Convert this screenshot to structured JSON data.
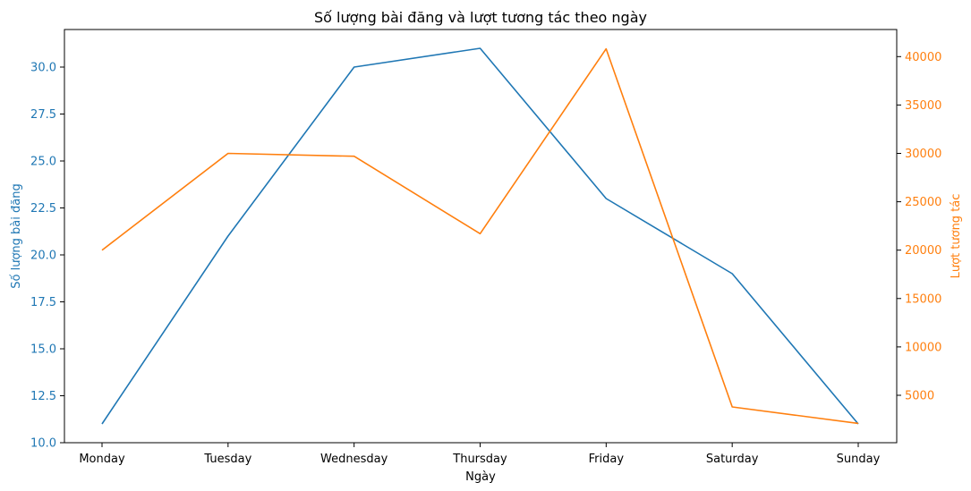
{
  "chart_data": {
    "type": "line",
    "title": "Số lượng bài đăng và lượt tương tác theo ngày",
    "xlabel": "Ngày",
    "categories": [
      "Monday",
      "Tuesday",
      "Wednesday",
      "Thursday",
      "Friday",
      "Saturday",
      "Sunday"
    ],
    "series": [
      {
        "axis": "left",
        "color": "#1f77b4",
        "values": [
          11,
          21,
          30,
          31,
          23,
          19,
          11
        ]
      },
      {
        "axis": "right",
        "color": "#ff7f0e",
        "values": [
          20000,
          30000,
          29700,
          21700,
          40800,
          3800,
          2100
        ]
      }
    ],
    "y_left": {
      "label": "Số lượng bài đăng",
      "color": "#1f77b4",
      "ylim": [
        10,
        32
      ],
      "ticks": [
        10,
        12.5,
        15,
        17.5,
        20,
        22.5,
        25,
        27.5,
        30
      ],
      "tick_labels": [
        "10.0",
        "12.5",
        "15.0",
        "17.5",
        "20.0",
        "22.5",
        "25.0",
        "27.5",
        "30.0"
      ]
    },
    "y_right": {
      "label": "Lượt tương tác",
      "color": "#ff7f0e",
      "ylim": [
        100,
        42800
      ],
      "ticks": [
        5000,
        10000,
        15000,
        20000,
        25000,
        30000,
        35000,
        40000
      ],
      "tick_labels": [
        "5000",
        "10000",
        "15000",
        "20000",
        "25000",
        "30000",
        "35000",
        "40000"
      ]
    },
    "grid": false,
    "legend": "none"
  }
}
